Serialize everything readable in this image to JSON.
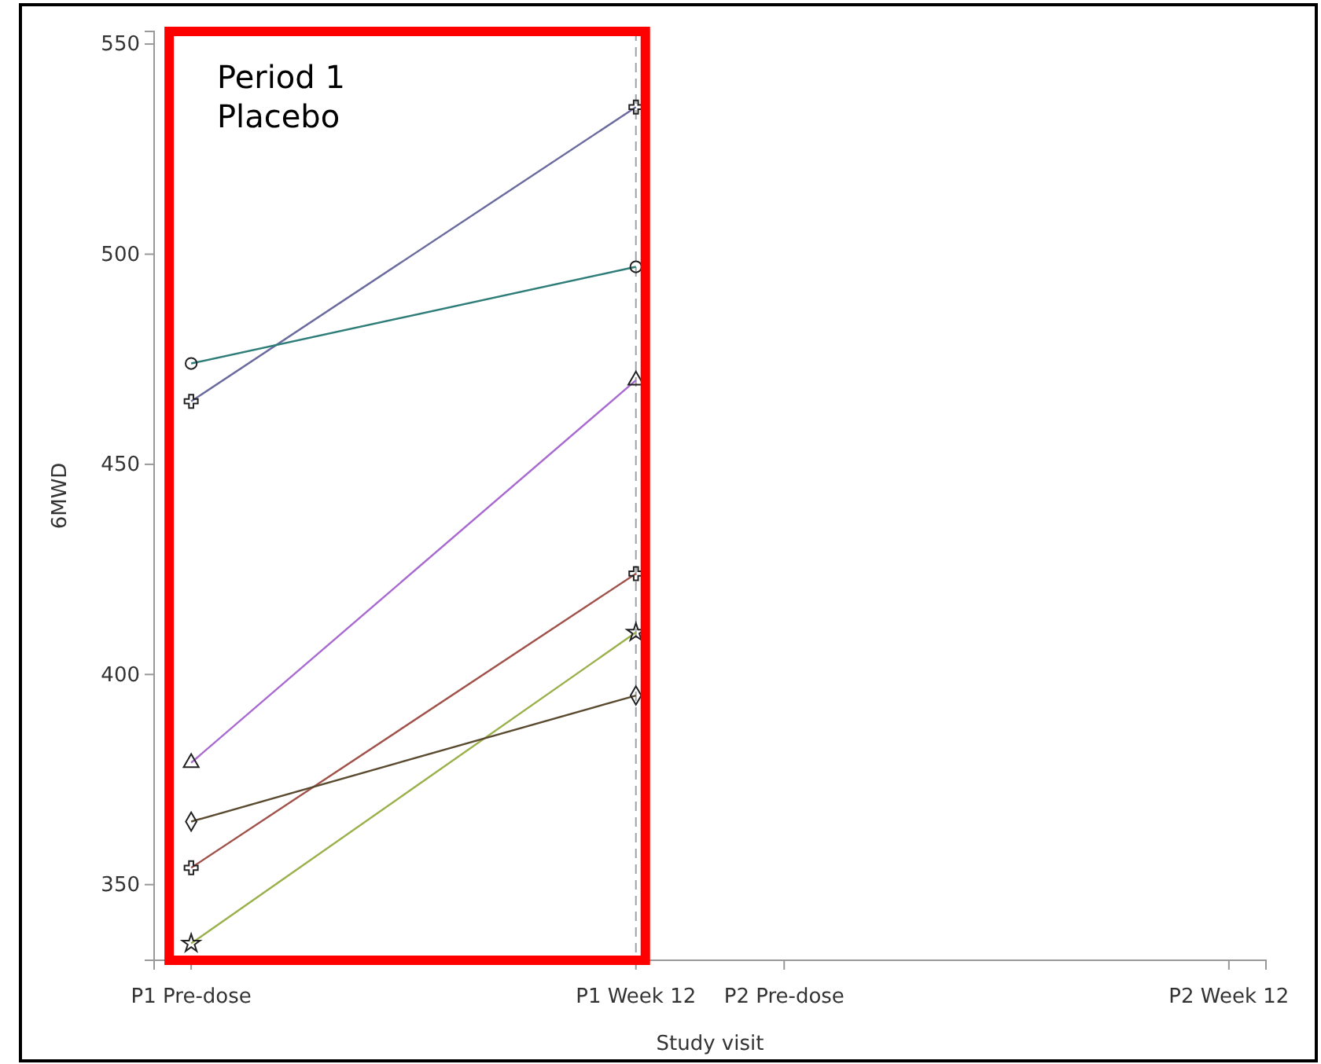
{
  "chart_data": {
    "type": "line",
    "xlabel": "Study visit",
    "ylabel": "6MWD",
    "categories": [
      "P1 Pre-dose",
      null,
      null,
      null,
      null,
      null,
      null,
      null,
      null,
      null,
      null,
      null,
      "P1 Week 12",
      null,
      null,
      null,
      "P2 Pre-dose",
      null,
      null,
      null,
      null,
      null,
      null,
      null,
      null,
      null,
      null,
      null,
      "P2 Week 12"
    ],
    "ylim": [
      332,
      553
    ],
    "yticks": [
      350,
      400,
      450,
      500,
      550
    ],
    "series": [
      {
        "color": "#6a6a9e",
        "marker": "cross",
        "values": [
          465,
          null,
          null,
          null,
          null,
          null,
          null,
          null,
          null,
          null,
          null,
          null,
          535,
          null,
          null,
          null,
          null,
          null,
          null,
          null,
          null,
          null,
          null,
          null,
          null,
          null,
          null,
          null,
          null
        ]
      },
      {
        "color": "#2e7d78",
        "marker": "circle",
        "values": [
          474,
          null,
          null,
          null,
          null,
          null,
          null,
          null,
          null,
          null,
          null,
          null,
          497,
          null,
          null,
          null,
          null,
          null,
          null,
          null,
          null,
          null,
          null,
          null,
          null,
          null,
          null,
          null,
          null
        ]
      },
      {
        "color": "#a86ad0",
        "marker": "triangle",
        "values": [
          379,
          null,
          null,
          null,
          null,
          null,
          null,
          null,
          null,
          null,
          null,
          null,
          470,
          null,
          null,
          null,
          null,
          null,
          null,
          null,
          null,
          null,
          null,
          null,
          null,
          null,
          null,
          null,
          null
        ]
      },
      {
        "color": "#a0524a",
        "marker": "cross",
        "values": [
          354,
          null,
          null,
          null,
          null,
          null,
          null,
          null,
          null,
          null,
          null,
          null,
          424,
          null,
          null,
          null,
          null,
          null,
          null,
          null,
          null,
          null,
          null,
          null,
          null,
          null,
          null,
          null,
          null
        ]
      },
      {
        "color": "#9ab04a",
        "marker": "star",
        "values": [
          336,
          null,
          null,
          null,
          null,
          null,
          null,
          null,
          null,
          null,
          null,
          null,
          410,
          null,
          null,
          null,
          null,
          null,
          null,
          null,
          null,
          null,
          null,
          null,
          null,
          null,
          null,
          null,
          null
        ]
      },
      {
        "color": "#5a4a30",
        "marker": "diamond",
        "values": [
          365,
          null,
          null,
          null,
          null,
          null,
          null,
          null,
          null,
          null,
          null,
          null,
          395,
          null,
          null,
          null,
          null,
          null,
          null,
          null,
          null,
          null,
          null,
          null,
          null,
          null,
          null,
          null,
          null
        ]
      }
    ],
    "ref_lines": [
      {
        "axis": "x",
        "value": "P1 Week 12",
        "color": "#a0a0a0",
        "line_style": "dashed"
      }
    ],
    "annotations": [
      "Period 1\nPlacebo"
    ],
    "line_style": "solid"
  }
}
